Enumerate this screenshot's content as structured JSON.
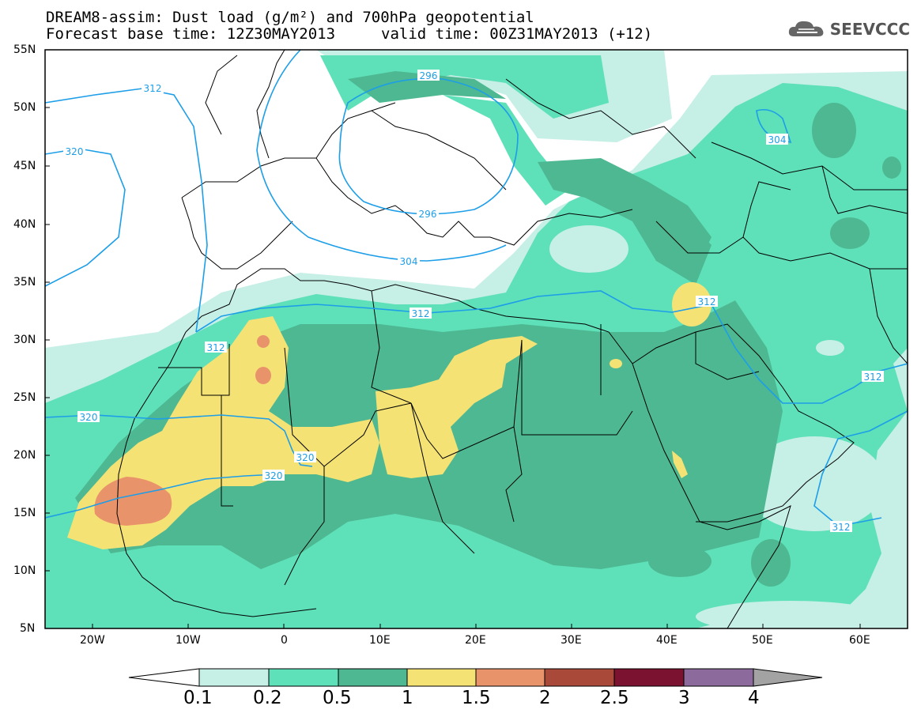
{
  "title": {
    "line1": "DREAM8-assim: Dust load (g/m²) and 700hPa geopotential",
    "line2_left": "Forecast base time: 12Z30MAY2013",
    "line2_right": "valid time: 00Z31MAY2013 (+12)"
  },
  "logo": {
    "text": "SEEVCCC",
    "icon": "cloud-icon"
  },
  "axes": {
    "lat_labels": [
      "55N",
      "50N",
      "45N",
      "40N",
      "35N",
      "30N",
      "25N",
      "20N",
      "15N",
      "10N",
      "5N"
    ],
    "lon_labels": [
      "20W",
      "10W",
      "0",
      "10E",
      "20E",
      "30E",
      "40E",
      "50E",
      "60E"
    ]
  },
  "contour_labels": {
    "c312_nw": "312",
    "c320_w": "320",
    "c296_n": "296",
    "c296_s": "296",
    "c304_s": "304",
    "c304_ne": "304",
    "c312_med": "312",
    "c312_morocco": "312",
    "c312_iraq": "312",
    "c312_gulf": "312",
    "c312_arab": "312",
    "c320_sahara": "320",
    "c320_mali": "320",
    "c320_west": "320"
  },
  "colorbar": {
    "levels": [
      "0.1",
      "0.2",
      "0.5",
      "1",
      "1.5",
      "2",
      "2.5",
      "3",
      "4"
    ],
    "colors": {
      "below": "#ffffff",
      "c0_1": "#c6efe6",
      "c0_2": "#5ee0b8",
      "c0_5": "#4db891",
      "c1": "#f5e275",
      "c1_5": "#e9936b",
      "c2": "#a8493a",
      "c2_5": "#7a1230",
      "c3": "#8c6a9c",
      "above": "#a3a3a3"
    }
  },
  "colors": {
    "contour": "#1d9ee8",
    "frame": "#000000"
  }
}
